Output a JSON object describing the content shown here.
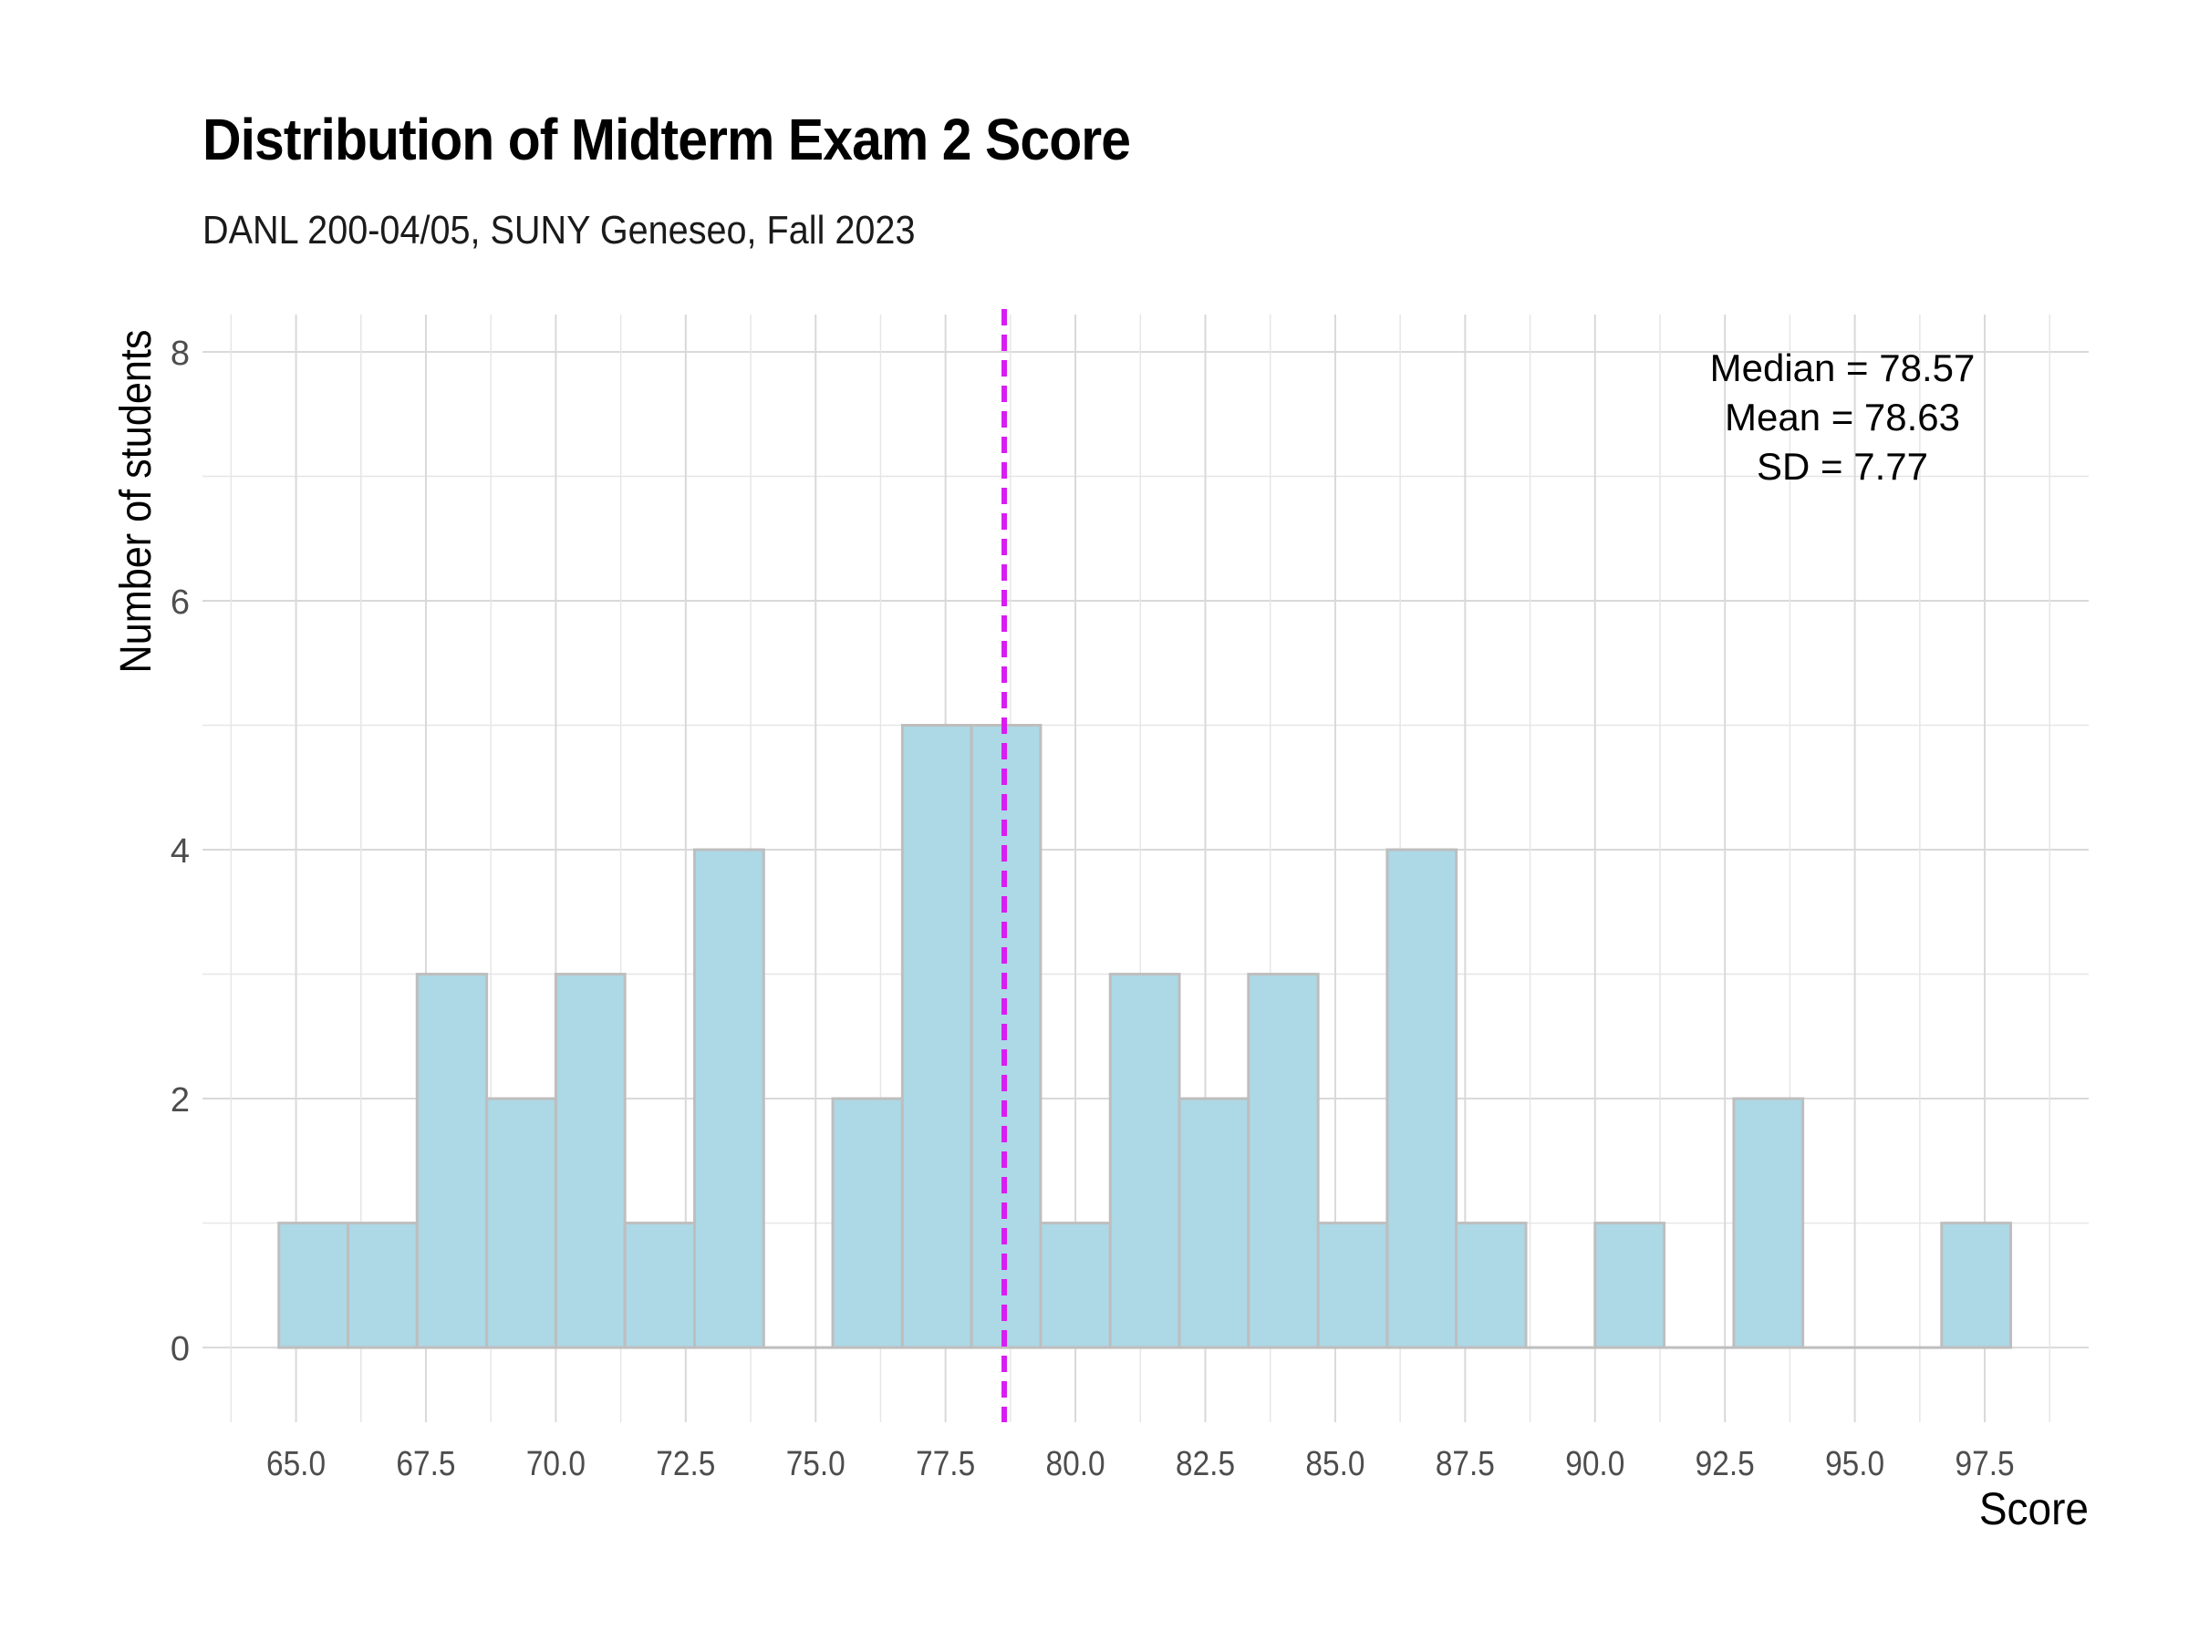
{
  "chart_data": {
    "type": "bar",
    "title": "Distribution of Midterm Exam 2 Score",
    "subtitle": "DANL 200-04/05, SUNY Geneseo, Fall 2023",
    "xlabel": "Score",
    "ylabel": "Number of students",
    "bin_width": 1.333,
    "bins": [
      {
        "start": 64.67,
        "end": 66.0,
        "count": 1
      },
      {
        "start": 66.0,
        "end": 67.33,
        "count": 1
      },
      {
        "start": 67.33,
        "end": 68.67,
        "count": 3
      },
      {
        "start": 68.67,
        "end": 70.0,
        "count": 2
      },
      {
        "start": 70.0,
        "end": 71.33,
        "count": 3
      },
      {
        "start": 71.33,
        "end": 72.67,
        "count": 1
      },
      {
        "start": 72.67,
        "end": 74.0,
        "count": 4
      },
      {
        "start": 74.0,
        "end": 75.33,
        "count": 0
      },
      {
        "start": 75.33,
        "end": 76.67,
        "count": 2
      },
      {
        "start": 76.67,
        "end": 78.0,
        "count": 5
      },
      {
        "start": 78.0,
        "end": 79.33,
        "count": 5
      },
      {
        "start": 79.33,
        "end": 80.67,
        "count": 1
      },
      {
        "start": 80.67,
        "end": 82.0,
        "count": 3
      },
      {
        "start": 82.0,
        "end": 83.33,
        "count": 2
      },
      {
        "start": 83.33,
        "end": 84.67,
        "count": 3
      },
      {
        "start": 84.67,
        "end": 86.0,
        "count": 1
      },
      {
        "start": 86.0,
        "end": 87.33,
        "count": 4
      },
      {
        "start": 87.33,
        "end": 88.67,
        "count": 1
      },
      {
        "start": 88.67,
        "end": 90.0,
        "count": 0
      },
      {
        "start": 90.0,
        "end": 91.33,
        "count": 1
      },
      {
        "start": 91.33,
        "end": 92.67,
        "count": 0
      },
      {
        "start": 92.67,
        "end": 94.0,
        "count": 2
      },
      {
        "start": 94.0,
        "end": 95.33,
        "count": 0
      },
      {
        "start": 95.33,
        "end": 96.67,
        "count": 0
      },
      {
        "start": 96.67,
        "end": 98.0,
        "count": 1
      }
    ],
    "xlim": [
      63.2,
      99.5
    ],
    "ylim": [
      -0.6,
      8.3
    ],
    "x_ticks": [
      "65.0",
      "67.5",
      "70.0",
      "72.5",
      "75.0",
      "77.5",
      "80.0",
      "82.5",
      "85.0",
      "87.5",
      "90.0",
      "92.5",
      "95.0",
      "97.5"
    ],
    "y_ticks": [
      "0",
      "2",
      "4",
      "6",
      "8"
    ],
    "mean_line": {
      "value": 78.63,
      "style": "dashed"
    },
    "annotation": [
      "Median = 78.57",
      "Mean = 78.63",
      "SD = 7.77"
    ],
    "grid": true,
    "colors": {
      "bar_fill": "#add8e6",
      "bar_stroke": "#bebebe",
      "mean_line": "#d81cf2",
      "grid": "#d9d9d9",
      "tick_label": "#4d4d4d"
    }
  }
}
